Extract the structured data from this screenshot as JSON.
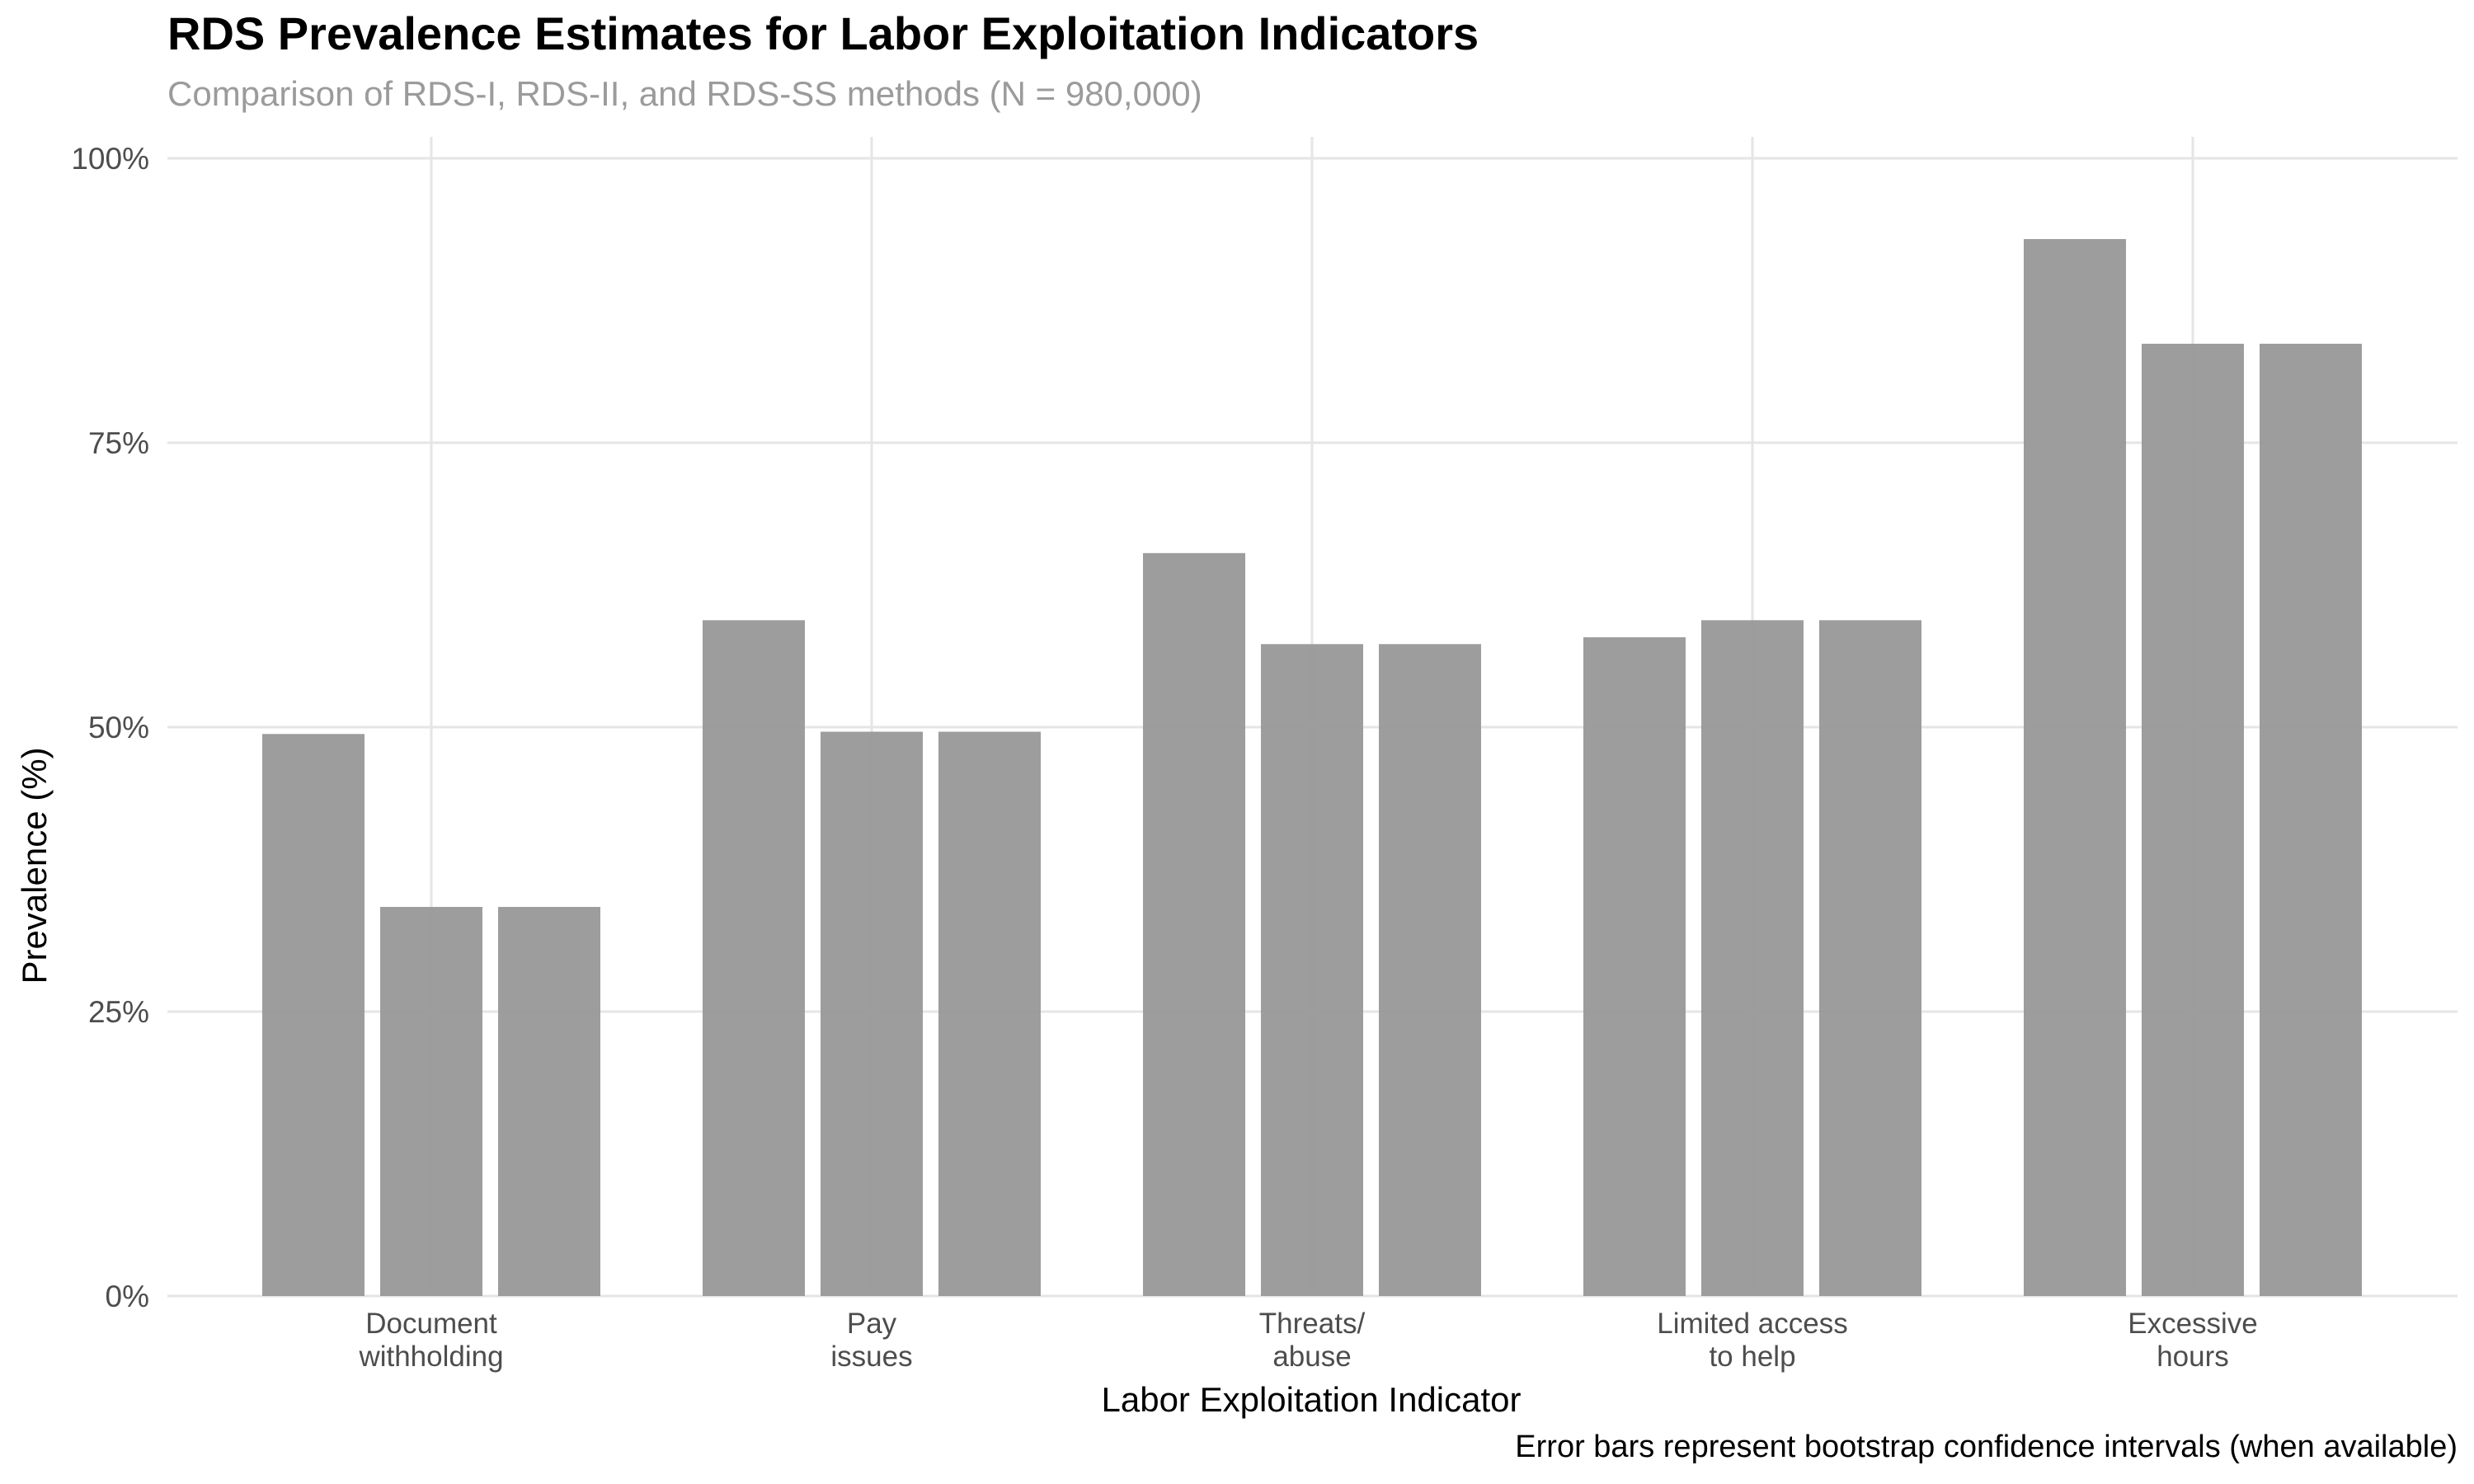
{
  "chart_data": {
    "type": "bar",
    "title": "RDS Prevalence Estimates for Labor Exploitation Indicators",
    "subtitle": "Comparison of RDS-I, RDS-II, and RDS-SS methods (N = 980,000)",
    "xlabel": "Labor Exploitation Indicator",
    "ylabel": "Prevalence (%)",
    "caption": "Error bars represent bootstrap confidence intervals (when available)",
    "categories": [
      [
        "Document",
        "withholding"
      ],
      [
        "Pay",
        "issues"
      ],
      [
        "Threats/",
        "abuse"
      ],
      [
        "Limited access",
        "to help"
      ],
      [
        "Excessive",
        "hours"
      ]
    ],
    "series": [
      {
        "values": [
          49.4,
          59.4,
          65.3,
          57.9,
          92.9
        ]
      },
      {
        "values": [
          34.2,
          49.6,
          57.3,
          59.4,
          83.7
        ]
      },
      {
        "values": [
          34.2,
          49.6,
          57.3,
          59.4,
          83.7
        ]
      }
    ],
    "ylim": [
      0,
      100
    ],
    "yticks": [
      0,
      25,
      50,
      75,
      100
    ],
    "ytick_labels": [
      "0%",
      "25%",
      "50%",
      "75%",
      "100%"
    ],
    "grid": true,
    "bar_color": "#999999",
    "grid_color": "#e5e5e5"
  }
}
